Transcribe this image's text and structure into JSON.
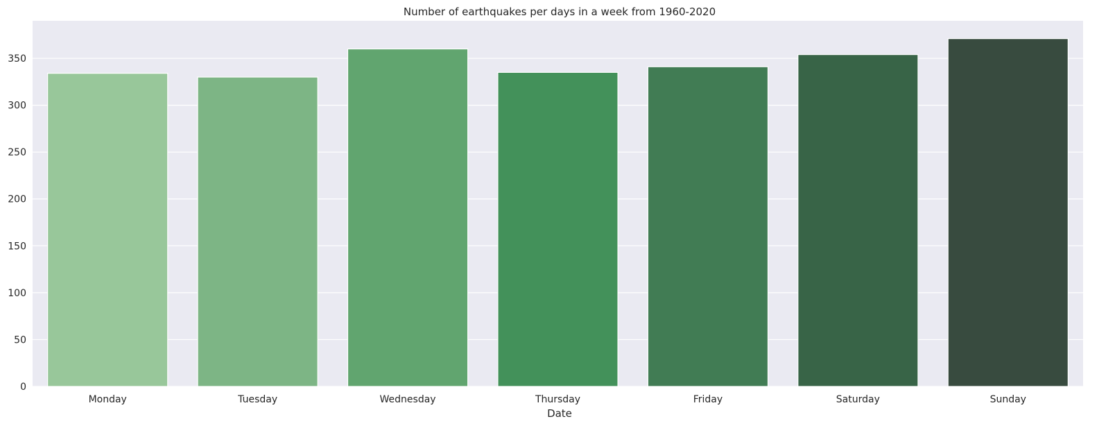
{
  "chart_data": {
    "type": "bar",
    "title": "Number of earthquakes per days in a week from 1960-2020",
    "xlabel": "Date",
    "ylabel": "",
    "categories": [
      "Monday",
      "Tuesday",
      "Wednesday",
      "Thursday",
      "Friday",
      "Saturday",
      "Sunday"
    ],
    "values": [
      334,
      330,
      360,
      335,
      341,
      354,
      371
    ],
    "ylim": [
      0,
      390
    ],
    "yticks": [
      0,
      50,
      100,
      150,
      200,
      250,
      300,
      350
    ],
    "grid": true,
    "colors": [
      "#98c79a",
      "#7db585",
      "#61a56f",
      "#43915a",
      "#417c54",
      "#386447",
      "#384b3f"
    ],
    "background": "#eaeaf2"
  }
}
